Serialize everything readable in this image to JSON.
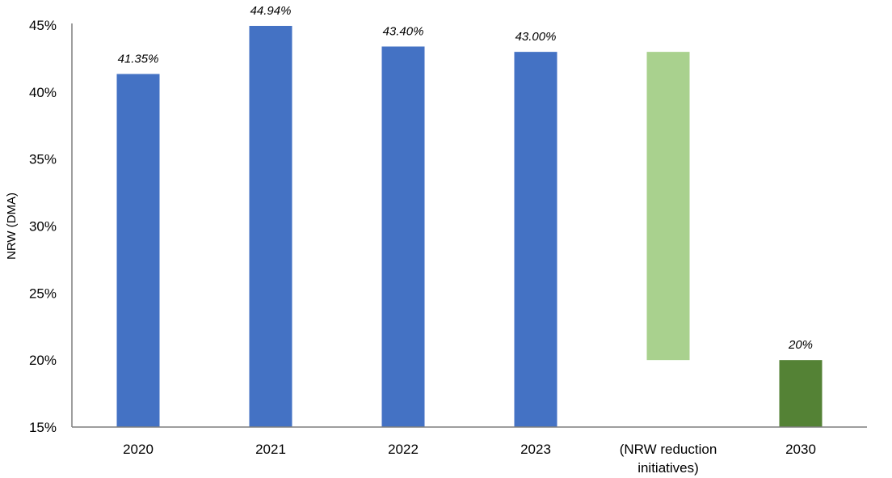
{
  "chart_data": {
    "type": "bar",
    "ylabel": "NRW (DMA)",
    "ylim": [
      0.15,
      0.45
    ],
    "yticks": [
      "15%",
      "20%",
      "25%",
      "30%",
      "35%",
      "40%",
      "45%"
    ],
    "ytick_values": [
      0.15,
      0.2,
      0.25,
      0.3,
      0.35,
      0.4,
      0.45
    ],
    "categories": [
      [
        "2020"
      ],
      [
        "2021"
      ],
      [
        "2022"
      ],
      [
        "2023"
      ],
      [
        "(NRW reduction",
        "initiatives)"
      ],
      [
        "2030"
      ]
    ],
    "bars": [
      {
        "low": 0.15,
        "high": 0.4135,
        "label": "41.35%",
        "color": "#4472C4"
      },
      {
        "low": 0.15,
        "high": 0.4494,
        "label": "44.94%",
        "color": "#4472C4"
      },
      {
        "low": 0.15,
        "high": 0.434,
        "label": "43.40%",
        "color": "#4472C4"
      },
      {
        "low": 0.15,
        "high": 0.43,
        "label": "43.00%",
        "color": "#4472C4"
      },
      {
        "low": 0.2,
        "high": 0.43,
        "label": "",
        "color": "#A9D18E"
      },
      {
        "low": 0.15,
        "high": 0.2,
        "label": "20%",
        "color": "#548235"
      }
    ],
    "grid": false,
    "legend": "none"
  }
}
